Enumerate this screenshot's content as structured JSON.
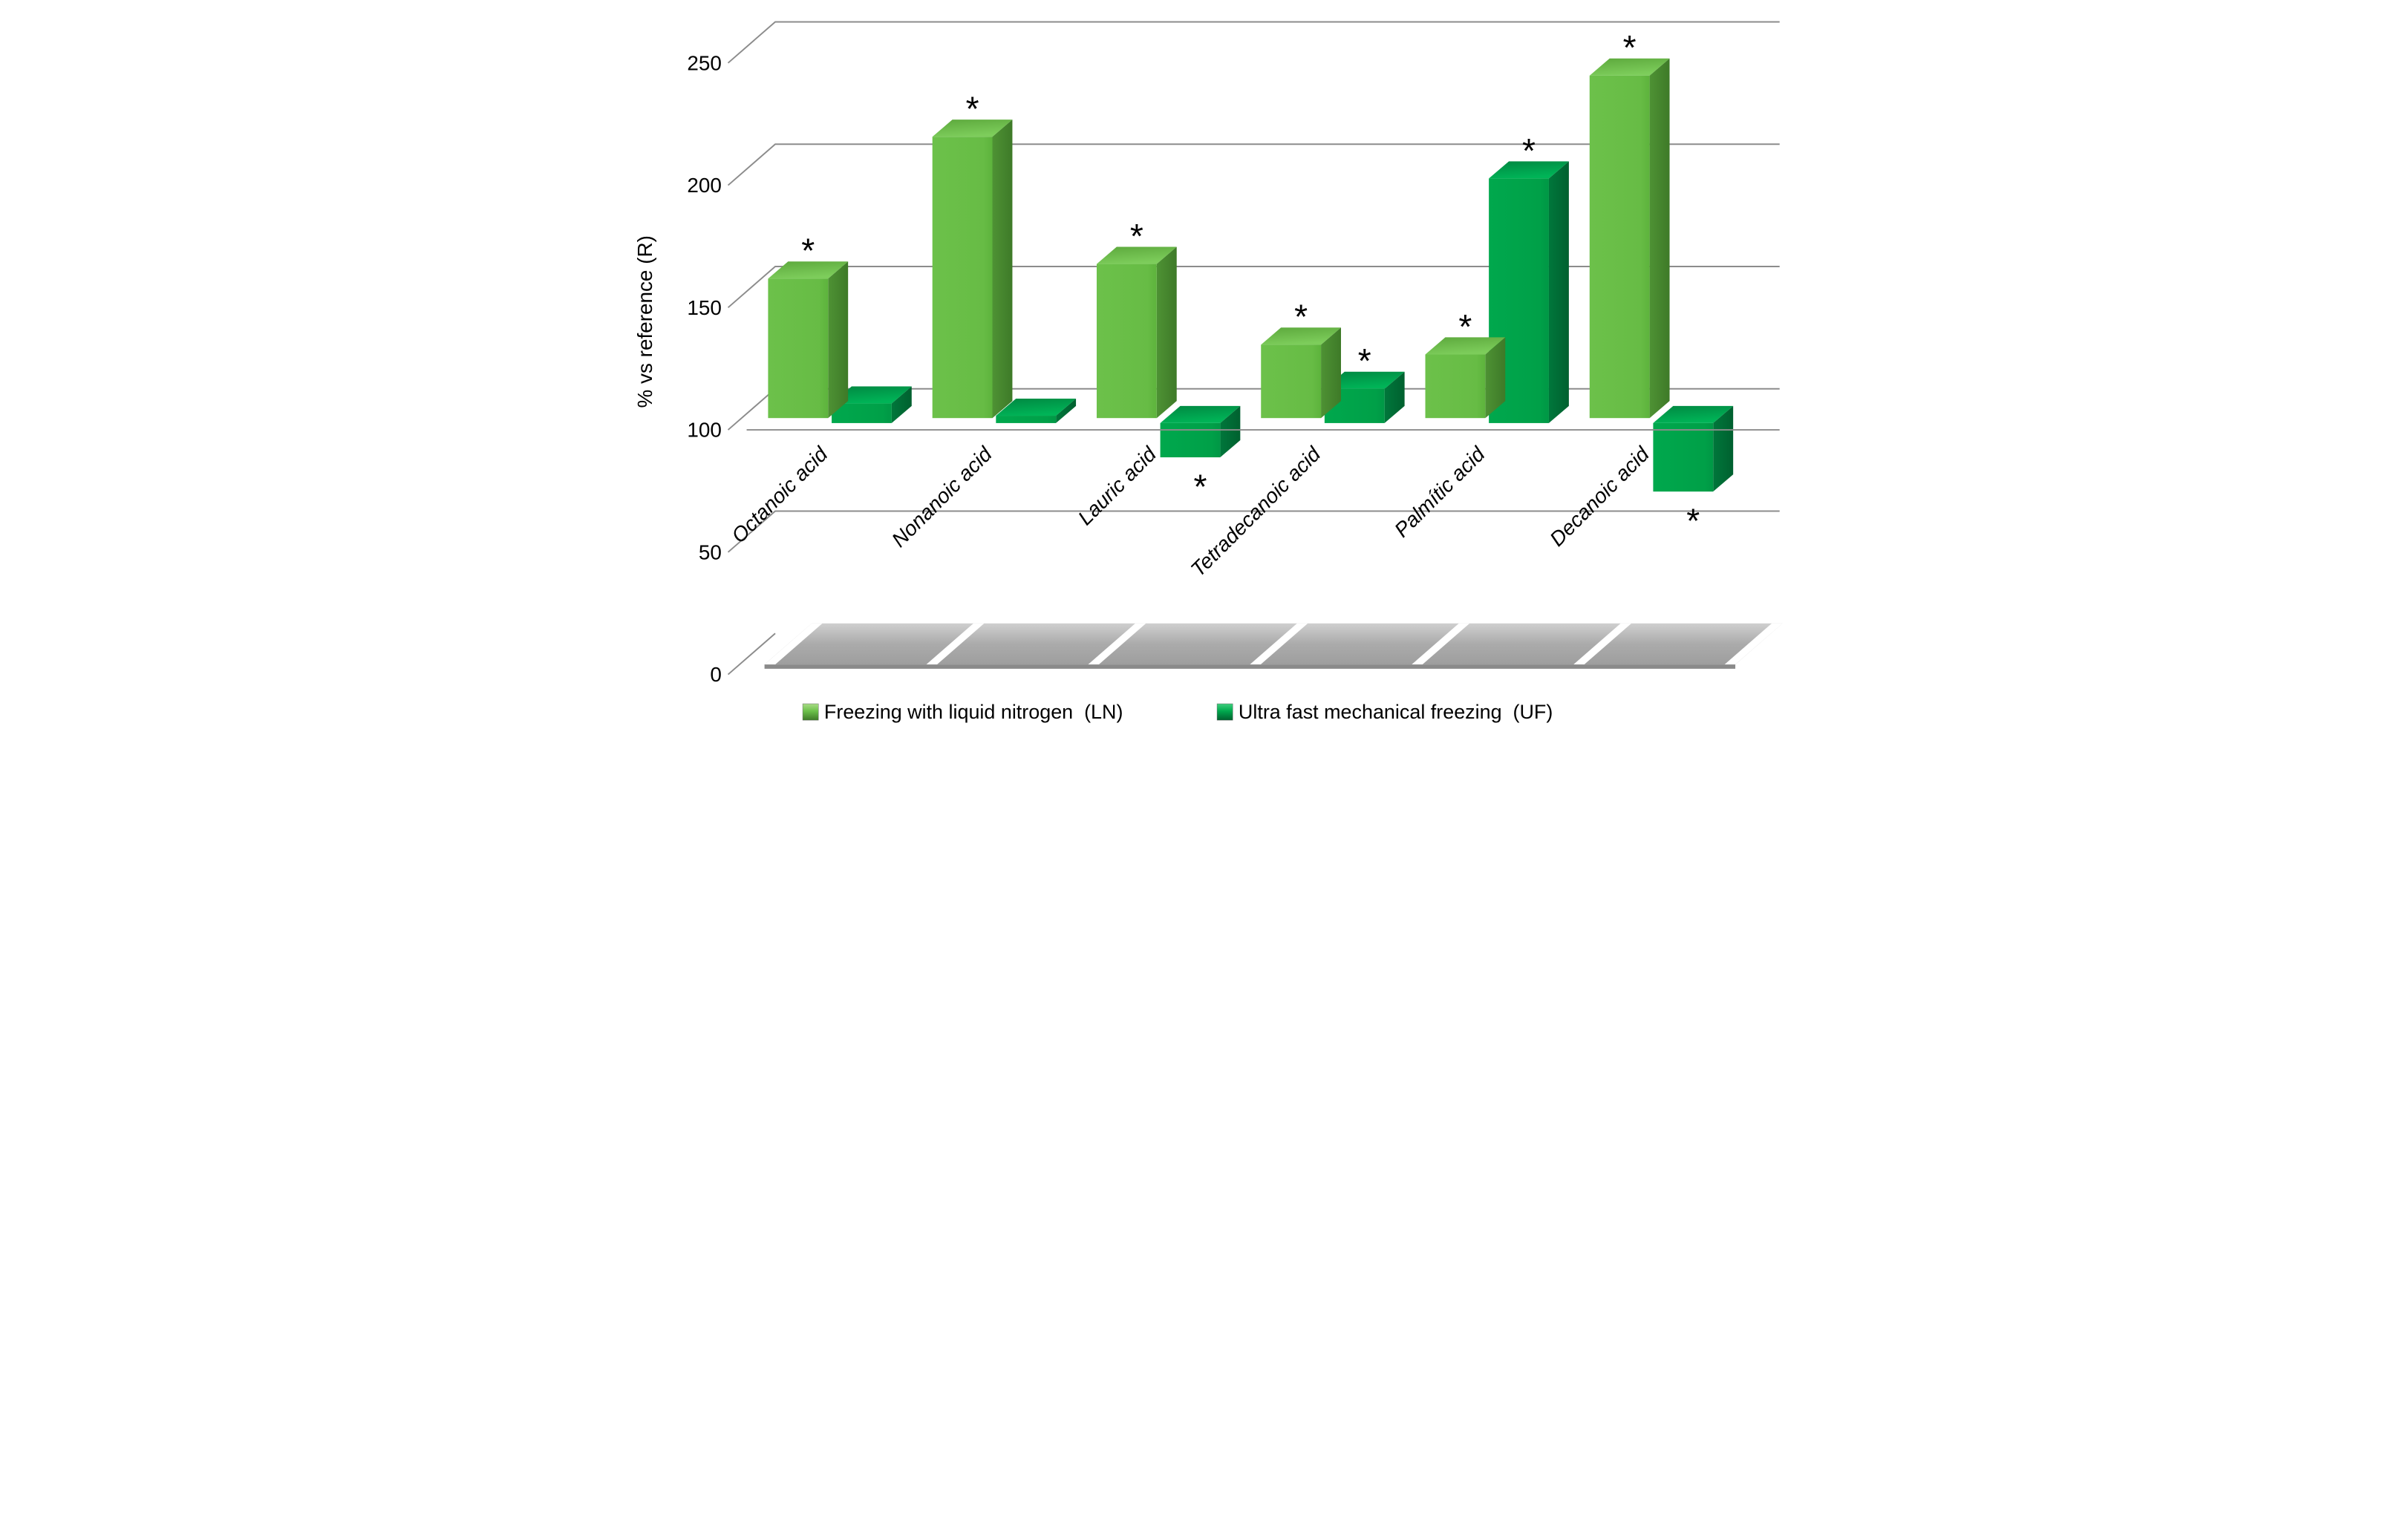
{
  "figure": {
    "kind": "3d-column-chart",
    "background": "#ffffff"
  },
  "chart_data": {
    "type": "bar",
    "projection": "3d-oblique",
    "title": "",
    "xlabel": "",
    "ylabel": "% vs reference (R)",
    "ylim": [
      0,
      250
    ],
    "yticks": [
      0,
      50,
      100,
      150,
      200,
      250
    ],
    "baseline_value": 100,
    "grid": true,
    "legend_position": "bottom",
    "significance_marker": "*",
    "categories": [
      "Octanoic acid",
      "Nonanoic acid",
      "Lauric acid",
      "Tetradecanoic acid",
      "Palmític acid",
      "Decanoic acid"
    ],
    "series": [
      {
        "name": "Freezing with liquid nitrogen  (LN)",
        "abbr": "LN",
        "values": [
          157,
          215,
          163,
          130,
          126,
          240
        ],
        "significant": [
          true,
          true,
          true,
          true,
          true,
          true
        ]
      },
      {
        "name": "Ultra fast mechanical freezing  (UF)",
        "abbr": "UF",
        "values": [
          108,
          103,
          86,
          114,
          200,
          72
        ],
        "significant": [
          false,
          false,
          true,
          true,
          true,
          true
        ]
      }
    ]
  },
  "colors": {
    "ln_front": "#6CC14A",
    "ln_front_dark": "#5DB33C",
    "ln_top": "#7DCD5B",
    "ln_top_dark": "#5CA83C",
    "ln_side": "#4E9234",
    "ln_side_dark": "#3E7A28",
    "uf_front": "#00A84D",
    "uf_front_dark": "#009745",
    "uf_top": "#00B457",
    "uf_top_dark": "#008741",
    "uf_side": "#00773B",
    "uf_side_dark": "#00602F",
    "gridline": "#8C8C8C",
    "floor_light": "#CFCFCF",
    "floor_dark": "#9E9E9E",
    "floor_edge": "#8A8A8A",
    "text": "#000000",
    "ln_legend_top": "#A6Dе85",
    "asterisk": "#000000"
  },
  "legend": {
    "items": [
      {
        "label": "Freezing with liquid nitrogen  (LN)",
        "swatch": "ln"
      },
      {
        "label": "Ultra fast mechanical freezing  (UF)",
        "swatch": "uf"
      }
    ]
  }
}
